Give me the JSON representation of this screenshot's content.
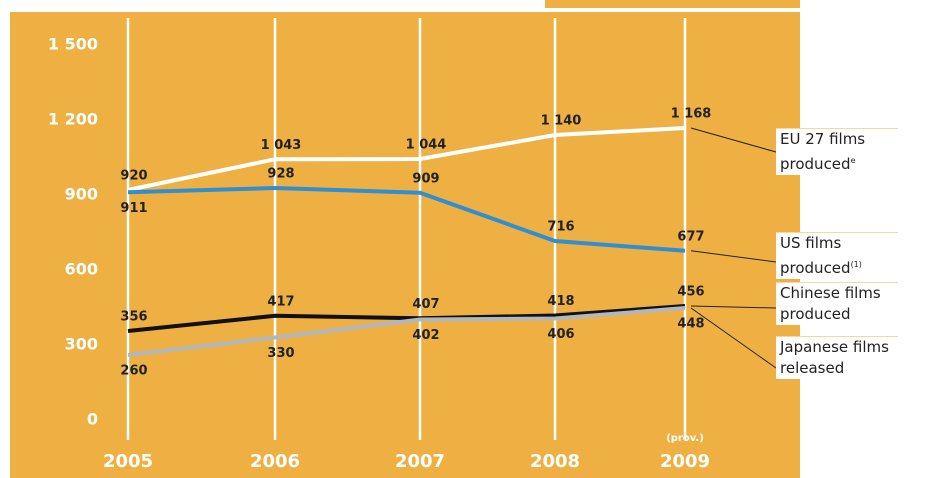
{
  "chart_data": {
    "type": "line",
    "categories": [
      "2005",
      "2006",
      "2007",
      "2008",
      "2009"
    ],
    "annotations": [
      "(prov.)"
    ],
    "ylim": [
      0,
      1500
    ],
    "yticks": [
      0,
      300,
      600,
      900,
      {
        "value": 1200,
        "label": "1 200"
      },
      {
        "value": 1500,
        "label": "1 500"
      }
    ],
    "grid": true,
    "series": [
      {
        "name": "EU 27 films produced",
        "note": "e",
        "color": "#ffffff",
        "values": [
          920,
          1043,
          1044,
          1140,
          1168
        ],
        "value_labels": [
          "920",
          "1 043",
          "1 044",
          "1 140",
          "1 168"
        ]
      },
      {
        "name": "US films produced",
        "note": "(1)",
        "color": "#2f8fd0",
        "values": [
          911,
          928,
          909,
          716,
          677
        ],
        "value_labels": [
          "911",
          "928",
          "909",
          "716",
          "677"
        ]
      },
      {
        "name": "Chinese films produced",
        "color": "#111111",
        "values": [
          356,
          417,
          407,
          418,
          456
        ],
        "value_labels": [
          "356",
          "417",
          "407",
          "418",
          "456"
        ]
      },
      {
        "name": "Japanese films released",
        "color": "#b0b8be",
        "values": [
          260,
          330,
          402,
          406,
          448
        ],
        "value_labels": [
          "260",
          "330",
          "402",
          "406",
          "448"
        ]
      }
    ]
  }
}
